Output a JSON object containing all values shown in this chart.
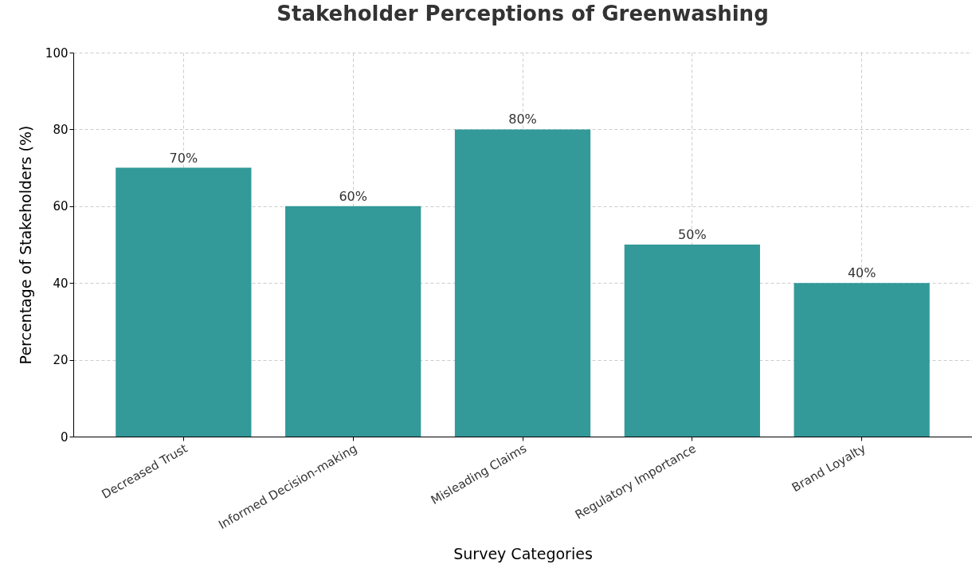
{
  "chart_data": {
    "type": "bar",
    "title": "Stakeholder Perceptions of Greenwashing",
    "xlabel": "Survey Categories",
    "ylabel": "Percentage of Stakeholders (%)",
    "categories": [
      "Decreased Trust",
      "Informed Decision-making",
      "Misleading Claims",
      "Regulatory Importance",
      "Brand Loyalty"
    ],
    "values": [
      70,
      60,
      80,
      50,
      40
    ],
    "value_labels": [
      "70%",
      "60%",
      "80%",
      "50%",
      "40%"
    ],
    "color": "#339999",
    "ylim": [
      0,
      100
    ],
    "yticks": [
      0,
      20,
      40,
      60,
      80,
      100
    ],
    "grid": true
  }
}
